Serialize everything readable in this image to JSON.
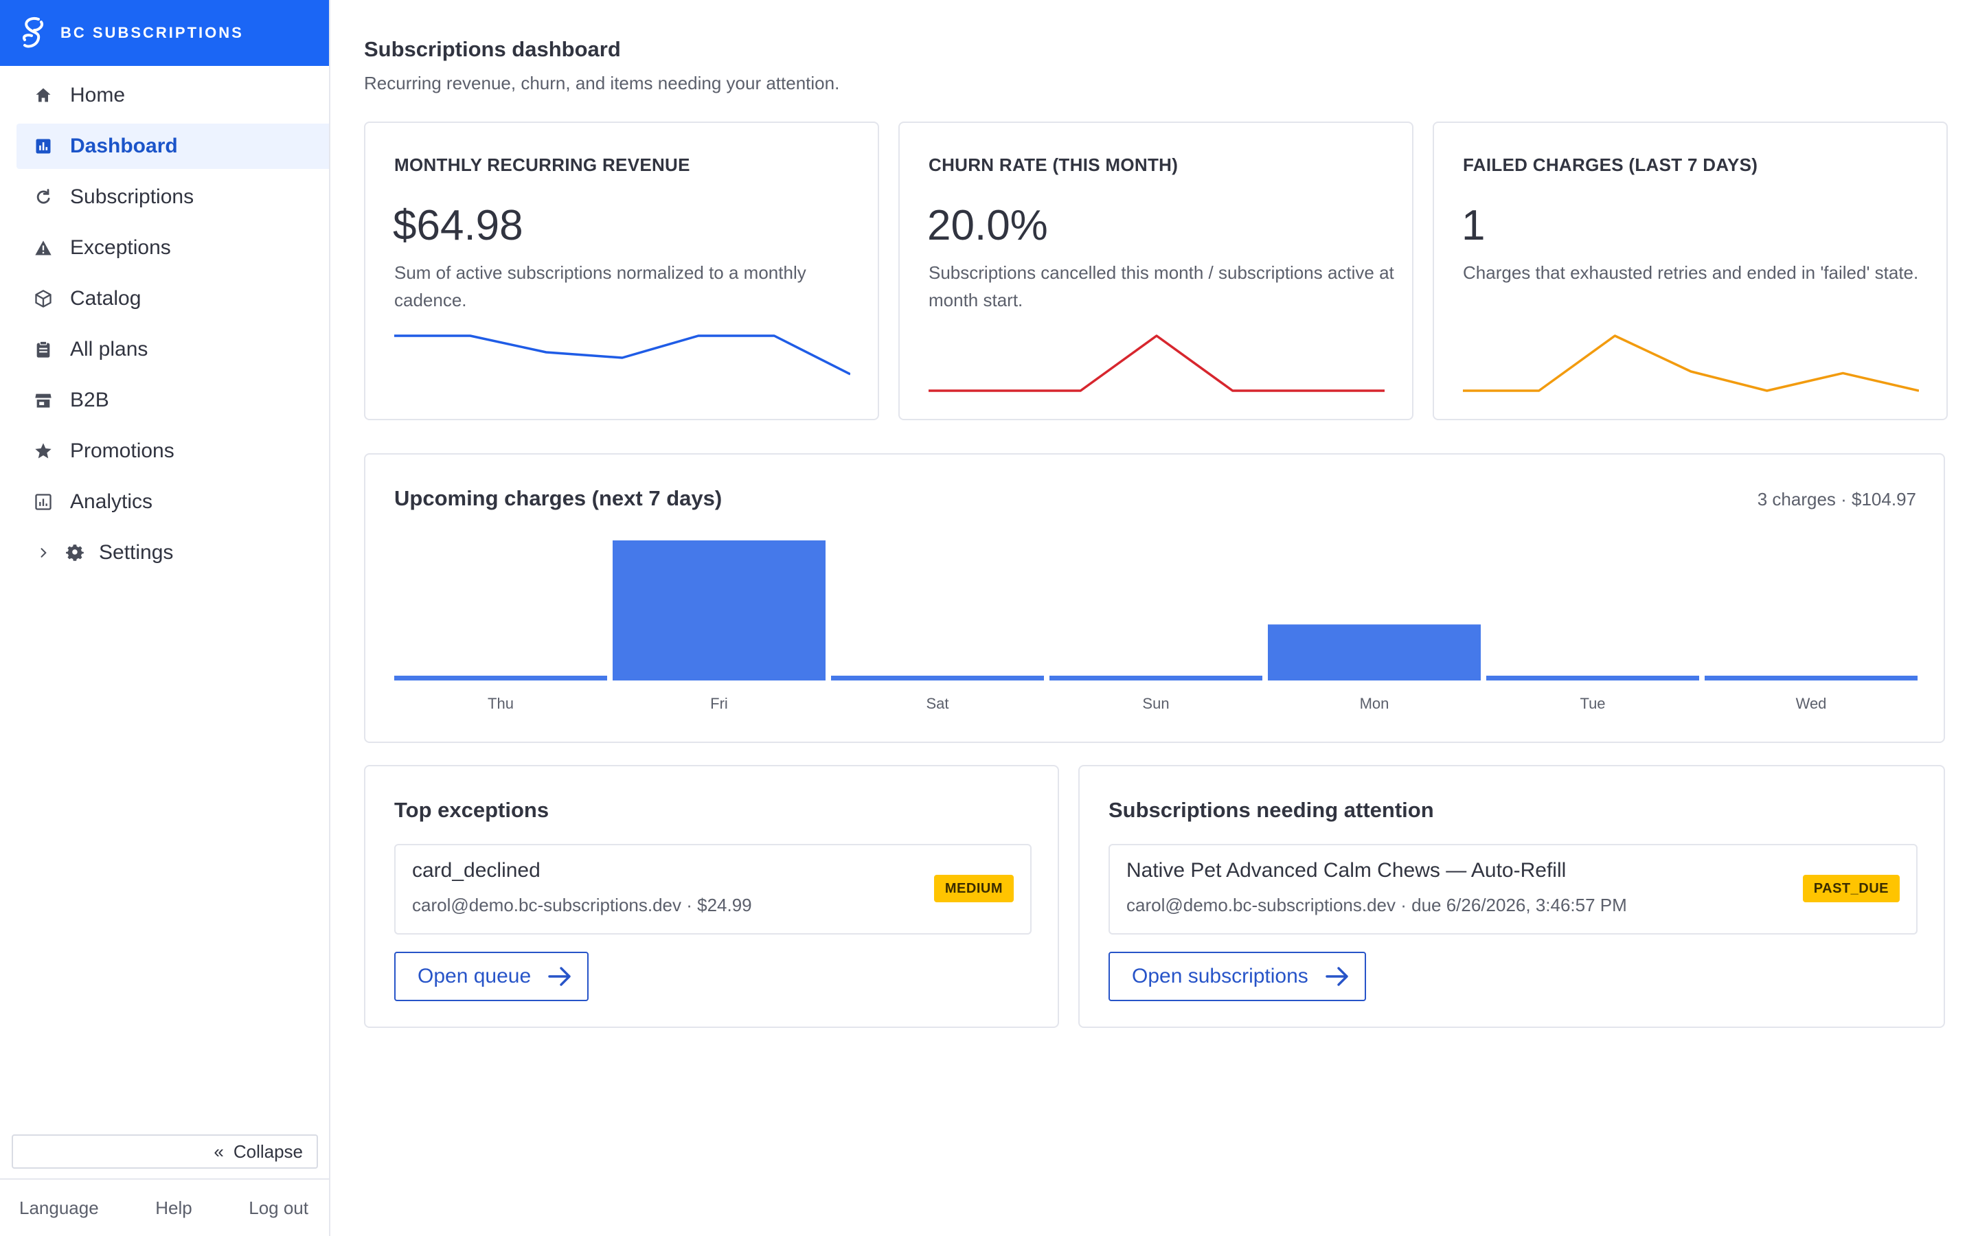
{
  "brand": {
    "name": "BC SUBSCRIPTIONS"
  },
  "sidebar": {
    "items": [
      {
        "label": "Home",
        "icon": "home-icon"
      },
      {
        "label": "Dashboard",
        "icon": "bar-chart-icon",
        "active": true
      },
      {
        "label": "Subscriptions",
        "icon": "refresh-icon"
      },
      {
        "label": "Exceptions",
        "icon": "warning-icon"
      },
      {
        "label": "Catalog",
        "icon": "box-icon"
      },
      {
        "label": "All plans",
        "icon": "clipboard-icon"
      },
      {
        "label": "B2B",
        "icon": "store-icon"
      },
      {
        "label": "Promotions",
        "icon": "star-icon"
      },
      {
        "label": "Analytics",
        "icon": "analytics-icon"
      },
      {
        "label": "Settings",
        "icon": "gear-icon"
      }
    ],
    "collapse_label": "Collapse",
    "collapse_glyph": "«",
    "footer": {
      "language": "Language",
      "help": "Help",
      "logout": "Log out"
    }
  },
  "page": {
    "title": "Subscriptions dashboard",
    "subtitle": "Recurring revenue, churn, and items needing your attention."
  },
  "metrics": [
    {
      "label": "MONTHLY RECURRING REVENUE",
      "value": "$64.98",
      "description": "Sum of active subscriptions normalized to a monthly cadence.",
      "color": "#1f5ce6",
      "spark": [
        1.0,
        1.0,
        0.7,
        0.6,
        1.0,
        1.0,
        0.3
      ]
    },
    {
      "label": "CHURN RATE (THIS MONTH)",
      "value": "20.0%",
      "description": "Subscriptions cancelled this month / subscriptions active at month start.",
      "color": "#d7262e",
      "spark": [
        0.0,
        0.0,
        0.0,
        1.0,
        0.0,
        0.0,
        0.0
      ]
    },
    {
      "label": "FAILED CHARGES (LAST 7 DAYS)",
      "value": "1",
      "description": "Charges that exhausted retries and ended in 'failed' state.",
      "color": "#f29b0e",
      "spark": [
        0.0,
        0.0,
        1.0,
        0.35,
        0.0,
        0.32,
        0.0
      ]
    }
  ],
  "upcoming": {
    "title": "Upcoming charges (next 7 days)",
    "summary": "3 charges · $104.97",
    "bar_color": "#4579ea",
    "days": [
      {
        "label": "Thu",
        "value": 0
      },
      {
        "label": "Fri",
        "value": 1
      },
      {
        "label": "Sat",
        "value": 0
      },
      {
        "label": "Sun",
        "value": 0
      },
      {
        "label": "Mon",
        "value": 0.4
      },
      {
        "label": "Tue",
        "value": 0
      },
      {
        "label": "Wed",
        "value": 0
      }
    ]
  },
  "exceptions": {
    "title": "Top exceptions",
    "item": {
      "title": "card_declined",
      "meta": "carol@demo.bc-subscriptions.dev · $24.99",
      "badge": "MEDIUM"
    },
    "button": "Open queue"
  },
  "attention": {
    "title": "Subscriptions needing attention",
    "item": {
      "title": "Native Pet Advanced Calm Chews — Auto-Refill",
      "meta": "carol@demo.bc-subscriptions.dev · due 6/26/2026, 3:46:57 PM",
      "badge": "PAST_DUE"
    },
    "button": "Open subscriptions"
  }
}
